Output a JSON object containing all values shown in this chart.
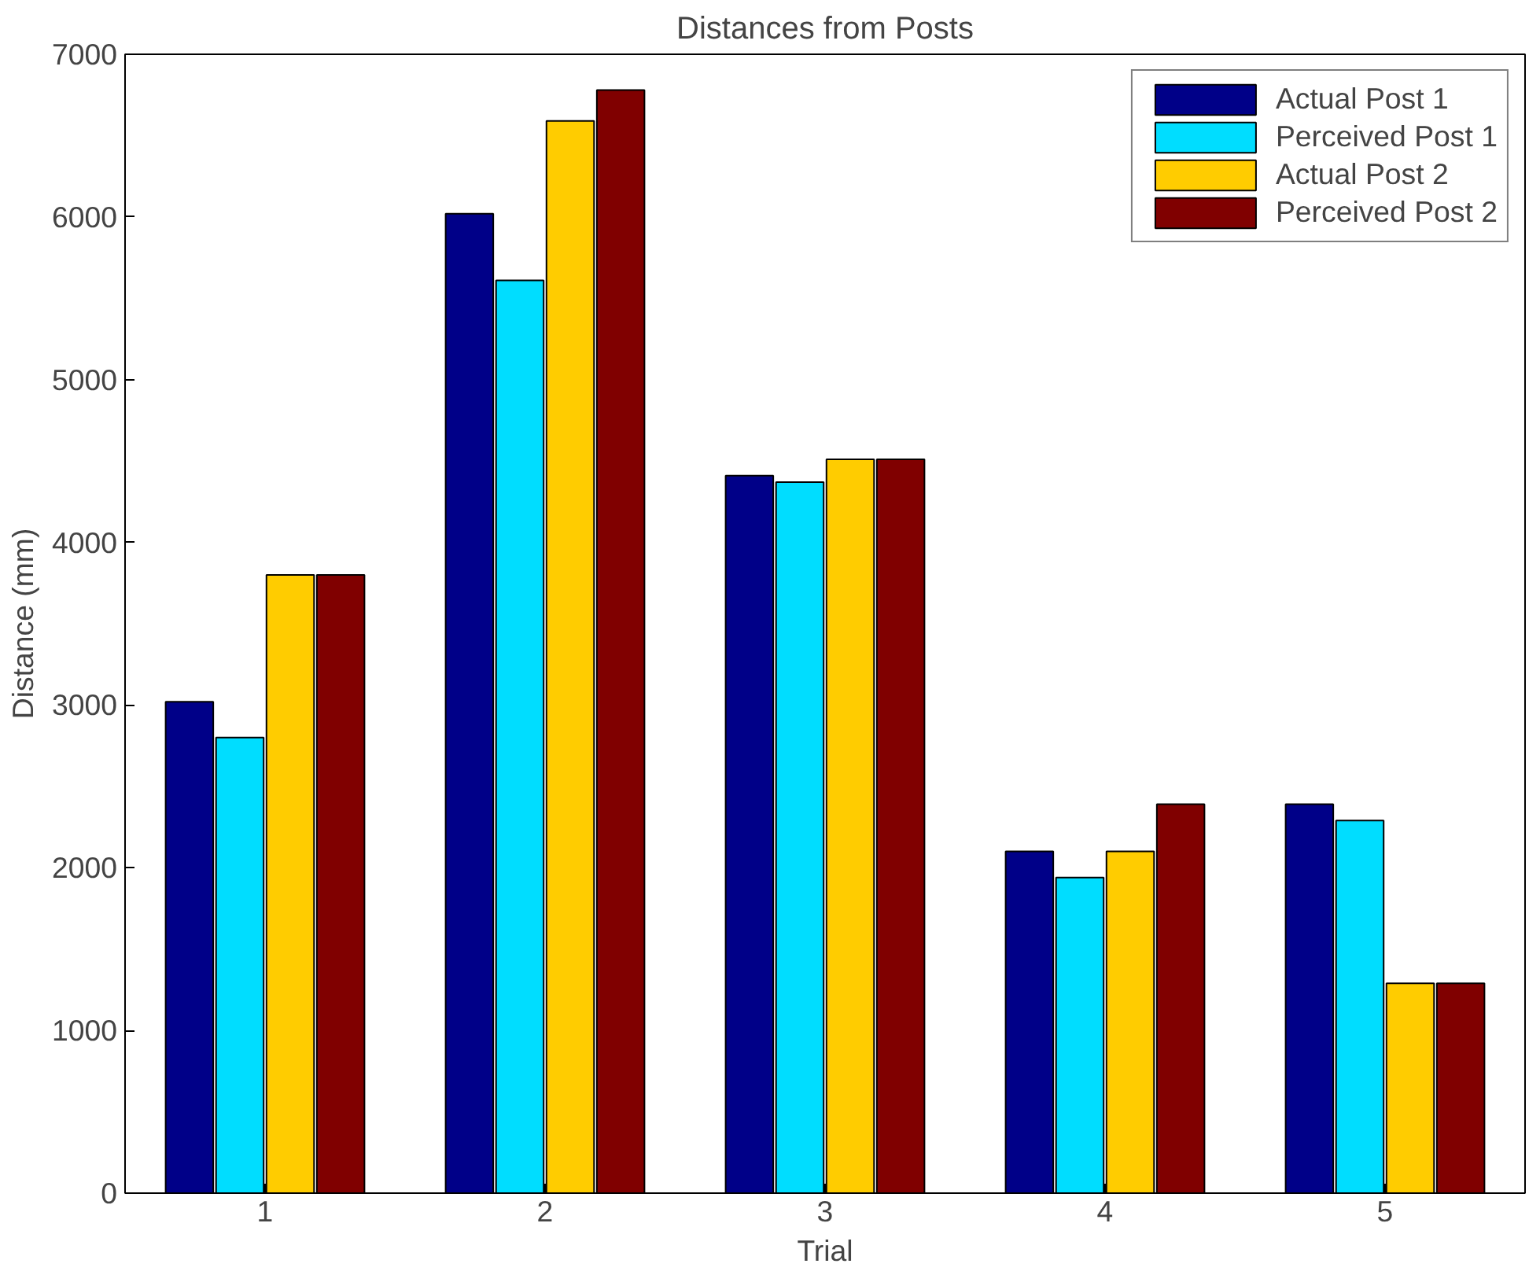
{
  "chart_data": {
    "type": "bar",
    "title": "Distances from Posts",
    "xlabel": "Trial",
    "ylabel": "Distance (mm)",
    "categories": [
      "1",
      "2",
      "3",
      "4",
      "5"
    ],
    "series": [
      {
        "name": "Actual Post 1",
        "color": "#000088",
        "values": [
          3020,
          6020,
          4410,
          2100,
          2390
        ]
      },
      {
        "name": "Perceived Post 1",
        "color": "#00ddff",
        "values": [
          2800,
          5610,
          4370,
          1940,
          2290
        ]
      },
      {
        "name": "Actual Post 2",
        "color": "#ffcc00",
        "values": [
          3800,
          6590,
          4510,
          2100,
          1290
        ]
      },
      {
        "name": "Perceived Post 2",
        "color": "#800000",
        "values": [
          3800,
          6780,
          4510,
          2390,
          1290
        ]
      }
    ],
    "ylim": [
      0,
      7000
    ],
    "yticks": [
      0,
      1000,
      2000,
      3000,
      4000,
      5000,
      6000,
      7000
    ],
    "grid": false,
    "legend": "top right"
  }
}
